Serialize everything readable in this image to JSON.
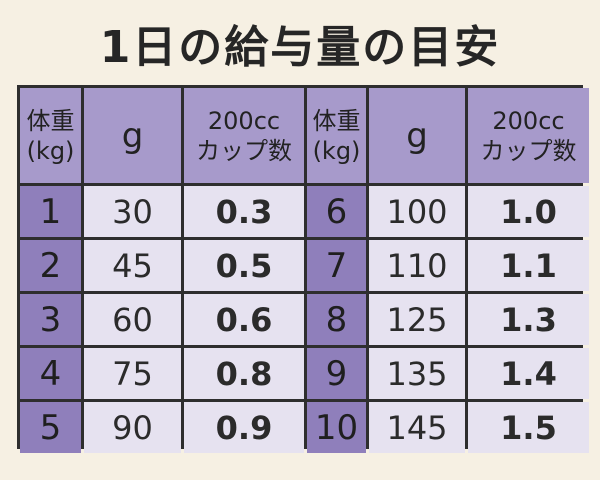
{
  "title": "1日の給与量の目安",
  "headers": {
    "weight_line1": "体重",
    "weight_line2": "(kg)",
    "grams": "g",
    "cups_line1": "200cc",
    "cups_line2": "カップ数"
  },
  "rows": [
    {
      "left": {
        "kg": "1",
        "g": "30",
        "cups": "0.3"
      },
      "right": {
        "kg": "6",
        "g": "100",
        "cups": "1.0"
      }
    },
    {
      "left": {
        "kg": "2",
        "g": "45",
        "cups": "0.5"
      },
      "right": {
        "kg": "7",
        "g": "110",
        "cups": "1.1"
      }
    },
    {
      "left": {
        "kg": "3",
        "g": "60",
        "cups": "0.6"
      },
      "right": {
        "kg": "8",
        "g": "125",
        "cups": "1.3"
      }
    },
    {
      "left": {
        "kg": "4",
        "g": "75",
        "cups": "0.8"
      },
      "right": {
        "kg": "9",
        "g": "135",
        "cups": "1.4"
      }
    },
    {
      "left": {
        "kg": "5",
        "g": "90",
        "cups": "0.9"
      },
      "right": {
        "kg": "10",
        "g": "145",
        "cups": "1.5"
      }
    }
  ],
  "colors": {
    "background": "#f6f0e3",
    "header": "#a79acb",
    "weight_cell": "#8f7fbb",
    "value_cell": "#e6e2f0",
    "border": "#2e2e2e"
  }
}
